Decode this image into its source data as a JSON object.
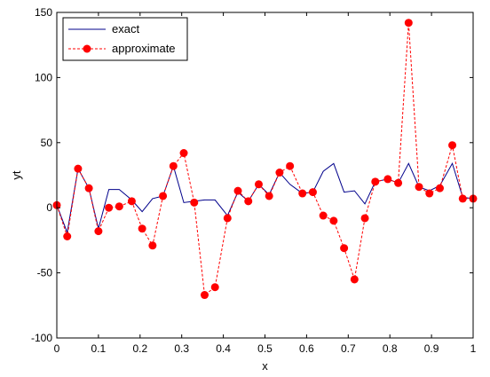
{
  "chart_data": {
    "type": "line",
    "xlabel": "x",
    "ylabel": "yt",
    "xlim": [
      0,
      1
    ],
    "ylim": [
      -100,
      150
    ],
    "xticks": [
      0,
      0.1,
      0.2,
      0.3,
      0.4,
      0.5,
      0.6,
      0.7,
      0.8,
      0.9,
      1
    ],
    "xtick_labels": [
      "0",
      "0.1",
      "0.2",
      "0.3",
      "0.4",
      "0.5",
      "0.6",
      "0.7",
      "0.8",
      "0.9",
      "1"
    ],
    "yticks": [
      -100,
      -50,
      0,
      50,
      100,
      150
    ],
    "ytick_labels": [
      "-100",
      "-50",
      "0",
      "50",
      "100",
      "150"
    ],
    "grid": false,
    "legend_position": "top-left",
    "series": [
      {
        "name": "exact",
        "style": "solid",
        "color": "#00008b",
        "x": [
          0,
          0.025,
          0.051,
          0.077,
          0.1,
          0.125,
          0.15,
          0.18,
          0.205,
          0.23,
          0.255,
          0.28,
          0.305,
          0.33,
          0.355,
          0.38,
          0.41,
          0.435,
          0.46,
          0.485,
          0.51,
          0.535,
          0.56,
          0.59,
          0.615,
          0.64,
          0.665,
          0.69,
          0.715,
          0.74,
          0.765,
          0.795,
          0.82,
          0.845,
          0.87,
          0.895,
          0.92,
          0.95,
          0.975,
          1
        ],
        "y": [
          2,
          -19,
          30,
          15,
          -16,
          14,
          14,
          6,
          -3,
          7,
          9,
          32,
          4,
          5,
          6,
          6,
          -6,
          12,
          5,
          18,
          10,
          27,
          18,
          11,
          12,
          28,
          34,
          12,
          13,
          3,
          20,
          22,
          19,
          34,
          16,
          13,
          17,
          34,
          8,
          7
        ]
      },
      {
        "name": "approximate",
        "style": "dashed",
        "marker": "circle",
        "color": "#ff0000",
        "x": [
          0,
          0.025,
          0.051,
          0.077,
          0.1,
          0.125,
          0.15,
          0.18,
          0.205,
          0.23,
          0.255,
          0.28,
          0.305,
          0.33,
          0.355,
          0.38,
          0.41,
          0.435,
          0.46,
          0.485,
          0.51,
          0.535,
          0.56,
          0.59,
          0.615,
          0.64,
          0.665,
          0.69,
          0.715,
          0.74,
          0.765,
          0.795,
          0.82,
          0.845,
          0.87,
          0.895,
          0.92,
          0.95,
          0.975,
          1
        ],
        "y": [
          2,
          -22,
          30,
          15,
          -18,
          0,
          1,
          5,
          -16,
          -29,
          9,
          32,
          42,
          4,
          -67,
          -61,
          -8,
          13,
          5,
          18,
          9,
          27,
          32,
          11,
          12,
          -6,
          -10,
          -31,
          -55,
          -8,
          20,
          22,
          19,
          142,
          16,
          11,
          15,
          48,
          7,
          7
        ]
      }
    ]
  }
}
